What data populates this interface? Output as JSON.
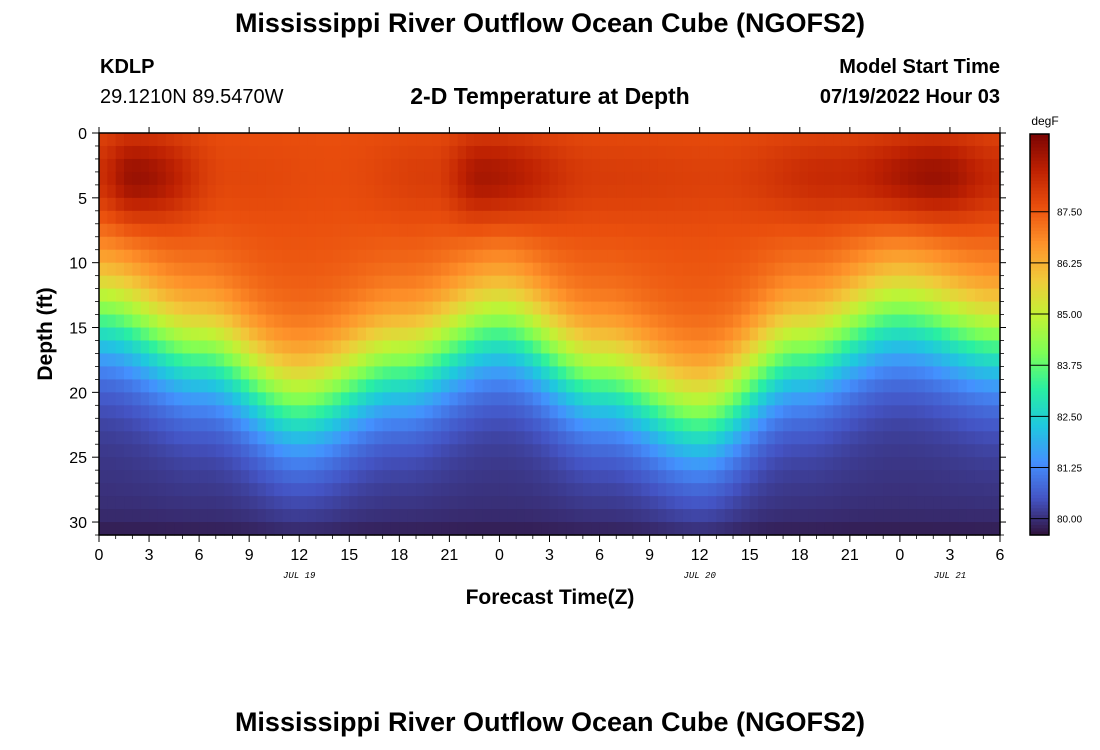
{
  "header": {
    "title": "Mississippi River Outflow Ocean Cube (NGOFS2)",
    "station": "KDLP",
    "coordinates": "29.1210N  89.5470W",
    "subtitle": "2-D Temperature at Depth",
    "model_start_label": "Model Start Time",
    "model_start_value": "07/19/2022 Hour 03"
  },
  "footer": {
    "title": "Mississippi River Outflow Ocean Cube (NGOFS2)"
  },
  "chart_data": {
    "type": "heatmap",
    "xlabel": "Forecast Time(Z)",
    "ylabel": "Depth (ft)",
    "x_tick_labels": [
      "0",
      "3",
      "6",
      "9",
      "12",
      "15",
      "18",
      "21",
      "0",
      "3",
      "6",
      "9",
      "12",
      "15",
      "18",
      "21",
      "0",
      "3",
      "6"
    ],
    "x_range_hours": [
      0,
      54
    ],
    "date_labels": [
      {
        "text": "JUL 19",
        "hour": 12
      },
      {
        "text": "JUL 20",
        "hour": 36
      },
      {
        "text": "JUL 21",
        "hour": 51
      }
    ],
    "y_ticks": [
      0,
      5,
      10,
      15,
      20,
      25,
      30
    ],
    "ylim": [
      0,
      31
    ],
    "y_inverted": true,
    "colorbar": {
      "unit": "degF",
      "ticks": [
        "87.50",
        "86.25",
        "85.00",
        "83.75",
        "82.50",
        "81.25",
        "80.00"
      ],
      "tick_values": [
        87.5,
        86.25,
        85.0,
        83.75,
        82.5,
        81.25,
        80.0
      ],
      "range": [
        79.6,
        89.4
      ],
      "colors": [
        "#30123b",
        "#4454c4",
        "#4490fe",
        "#1fc8de",
        "#29efa2",
        "#7dff56",
        "#c1f334",
        "#f1ca3a",
        "#fe922a",
        "#ea4f0d",
        "#be2102",
        "#7a0403"
      ]
    },
    "thermocline_depth_ft": {
      "hours": [
        0,
        6,
        12,
        18,
        24,
        30,
        36,
        42,
        48,
        54
      ],
      "values": [
        14,
        17,
        21,
        18,
        15,
        19,
        22,
        17,
        14,
        16
      ]
    },
    "surface_temp_degF": {
      "hours": [
        0,
        2,
        8,
        14,
        20,
        23,
        30,
        37,
        44,
        50,
        54
      ],
      "values": [
        88.4,
        89.1,
        87.8,
        87.7,
        88.0,
        88.9,
        88.0,
        87.9,
        88.4,
        89.1,
        88.4
      ]
    },
    "bottom_temp_degF": 80.0
  }
}
